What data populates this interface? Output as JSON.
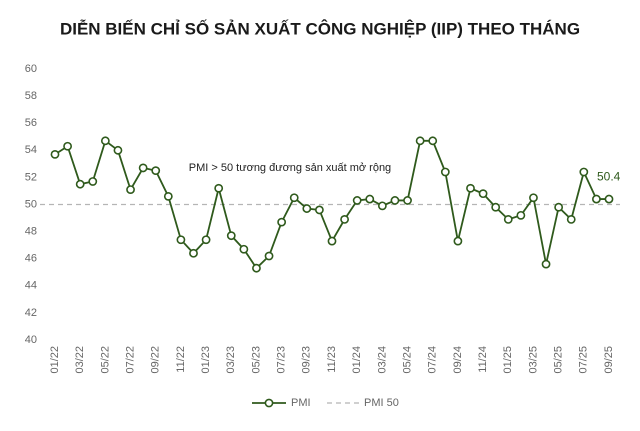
{
  "chart_data": {
    "type": "line",
    "title": "DIỄN BIẾN CHỈ SỐ SẢN XUẤT CÔNG NGHIỆP (IIP) THEO THÁNG",
    "annotation": "PMI > 50 tương đương sản xuất mở rộng",
    "categories": [
      "01/22",
      null,
      "03/22",
      null,
      "05/22",
      null,
      "07/22",
      null,
      "09/22",
      null,
      "11/22",
      null,
      "01/23",
      null,
      "03/23",
      null,
      "05/23",
      null,
      "07/23",
      null,
      "09/23",
      null,
      "11/23",
      null,
      "01/24",
      null,
      "03/24",
      null,
      "05/24",
      null,
      "07/24",
      null,
      "09/24",
      null,
      "11/24",
      null,
      "01/25",
      null,
      "03/25",
      null,
      "05/25",
      null,
      "07/25",
      null,
      "09/25"
    ],
    "series": [
      {
        "name": "PMI",
        "color": "#2f5a1c",
        "values": [
          53.7,
          54.3,
          51.5,
          51.7,
          54.7,
          54.0,
          51.1,
          52.7,
          52.5,
          50.6,
          47.4,
          46.4,
          47.4,
          51.2,
          47.7,
          46.7,
          45.3,
          46.2,
          48.7,
          50.5,
          49.7,
          49.6,
          47.3,
          48.9,
          50.3,
          50.4,
          49.9,
          50.3,
          50.3,
          54.7,
          54.7,
          52.4,
          47.3,
          51.2,
          50.8,
          49.8,
          48.9,
          49.2,
          50.5,
          45.6,
          49.8,
          48.9,
          52.4,
          50.4,
          50.4
        ],
        "value_labels": [
          null,
          null,
          null,
          null,
          null,
          null,
          null,
          null,
          null,
          null,
          null,
          null,
          null,
          null,
          null,
          null,
          null,
          null,
          null,
          null,
          null,
          null,
          null,
          null,
          null,
          null,
          null,
          null,
          null,
          null,
          null,
          null,
          null,
          null,
          null,
          null,
          null,
          null,
          null,
          null,
          null,
          null,
          null,
          null,
          "50.4"
        ]
      }
    ],
    "reference_line": {
      "name": "PMI 50",
      "value": 50,
      "color": "#b5b5b5"
    },
    "ylim": [
      40,
      60
    ],
    "yticks": [
      40,
      42,
      44,
      46,
      48,
      50,
      52,
      54,
      56,
      58,
      60
    ],
    "grid": false
  }
}
